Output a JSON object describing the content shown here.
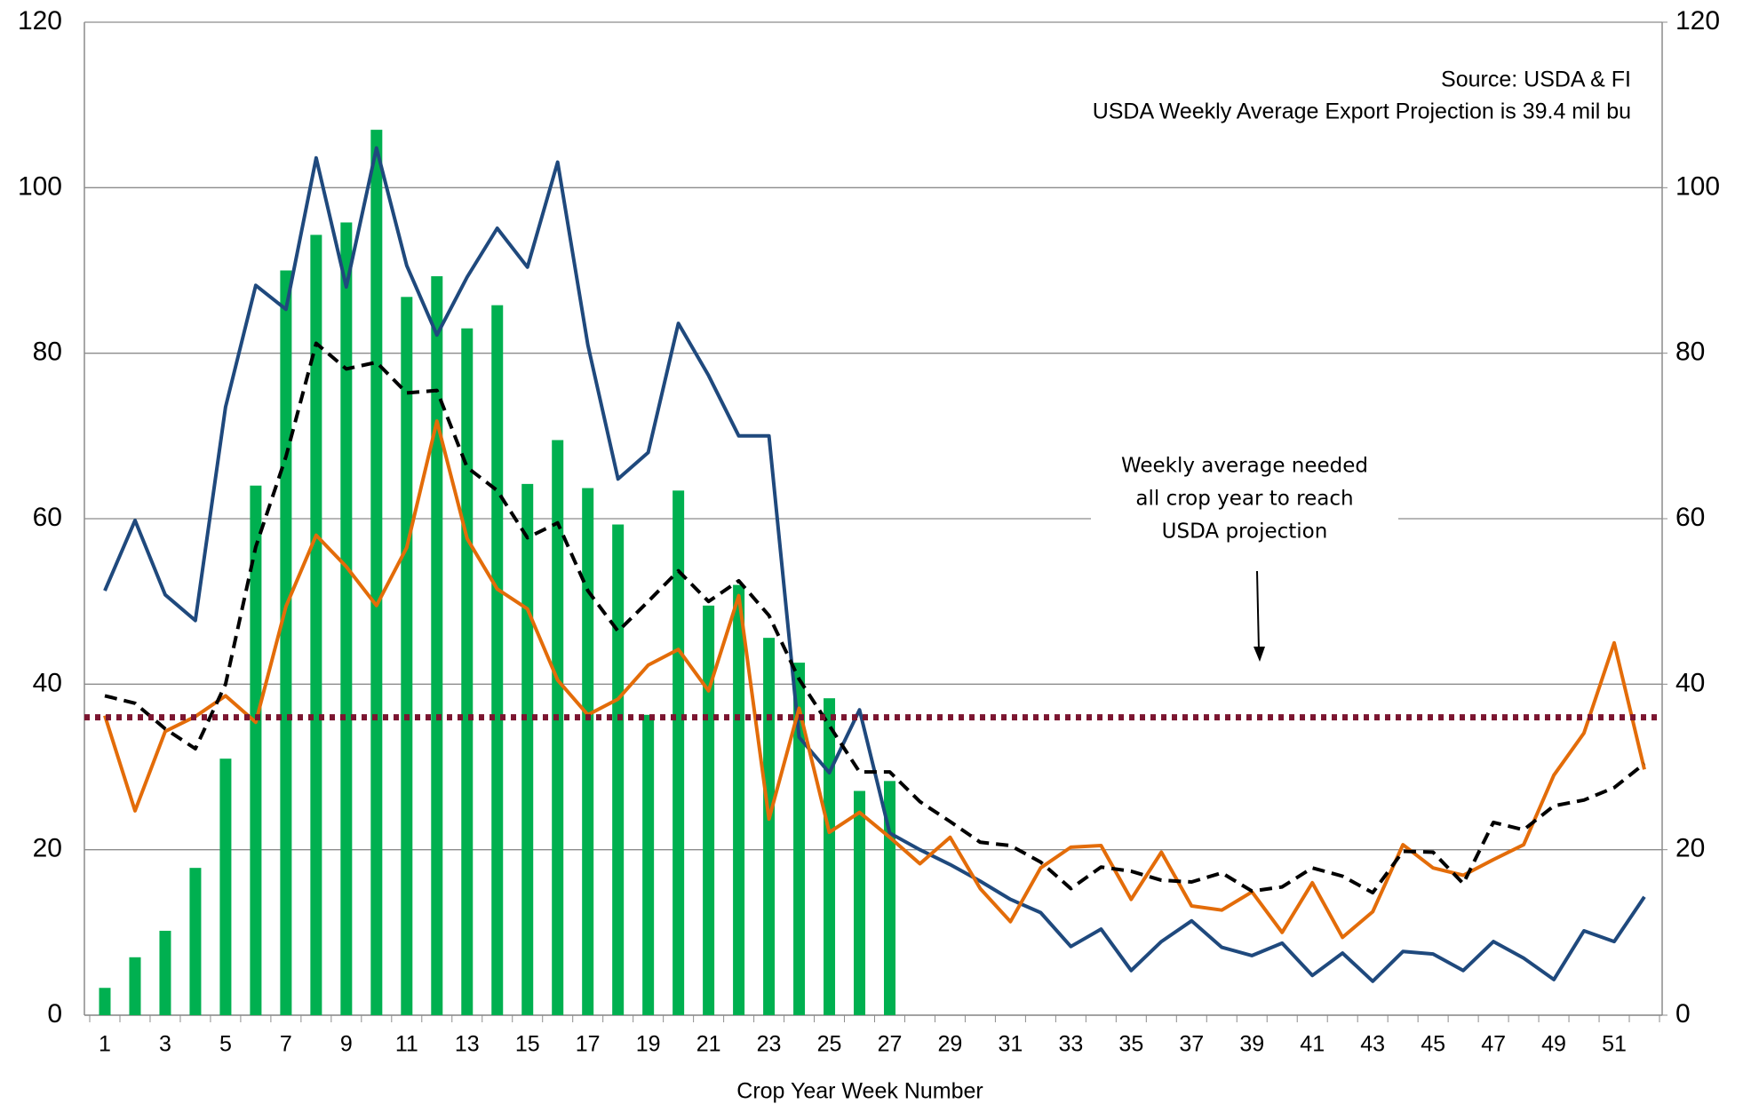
{
  "chart_data": {
    "type": "bar",
    "x_label": "Crop Year Week Number",
    "categories": [
      1,
      null,
      3,
      null,
      5,
      null,
      7,
      null,
      9,
      null,
      11,
      null,
      13,
      null,
      15,
      null,
      17,
      null,
      19,
      null,
      21,
      null,
      23,
      null,
      25,
      null,
      27,
      null,
      29,
      null,
      31,
      null,
      33,
      null,
      35,
      null,
      37,
      null,
      39,
      null,
      41,
      null,
      43,
      null,
      45,
      null,
      47,
      null,
      49,
      null,
      51,
      null
    ],
    "series": [
      {
        "type": "bar",
        "color": "#00b050",
        "values": [
          3.3,
          7,
          10.2,
          17.8,
          31,
          64,
          90,
          94.3,
          95.8,
          107,
          86.8,
          89.3,
          83,
          85.8,
          64.2,
          69.5,
          63.7,
          59.3,
          36.3,
          63.4,
          49.5,
          52,
          45.6,
          42.6,
          38.3,
          27.1,
          28.3,
          null,
          null,
          null,
          null,
          null,
          null,
          null,
          null,
          null,
          null,
          null,
          null,
          null,
          null,
          null,
          null,
          null,
          null,
          null,
          null,
          null,
          null,
          null,
          null,
          null
        ]
      },
      {
        "type": "line",
        "color": "#1f497d",
        "values": [
          51.3,
          59.8,
          50.8,
          47.7,
          73.5,
          88.2,
          85.3,
          103.6,
          88,
          104.8,
          90.6,
          82.2,
          89.2,
          95.1,
          90.4,
          103.1,
          81,
          64.8,
          68,
          83.6,
          77.3,
          70,
          70,
          33.6,
          29.3,
          36.9,
          22,
          20,
          18.2,
          16.2,
          14,
          12.4,
          8.3,
          10.4,
          5.4,
          8.9,
          11.4,
          8.2,
          7.2,
          8.7,
          4.8,
          7.5,
          4.1,
          7.7,
          7.4,
          5.4,
          8.9,
          6.9,
          4.3,
          10.2,
          8.9,
          14.3
        ]
      },
      {
        "type": "line",
        "color": "#e36c09",
        "values": [
          36.2,
          24.7,
          34.3,
          36.1,
          38.6,
          35.4,
          49.4,
          58,
          54.2,
          49.5,
          56.5,
          71.8,
          57.6,
          51.5,
          49.1,
          40.5,
          36.3,
          38.2,
          42.3,
          44.2,
          39.2,
          50.7,
          23.7,
          37.1,
          22.1,
          24.5,
          21.5,
          18.3,
          21.5,
          15.3,
          11.3,
          17.8,
          20.3,
          20.5,
          14,
          19.7,
          13.2,
          12.7,
          14.9,
          10,
          16,
          9.4,
          12.5,
          20.6,
          17.8,
          16.9,
          18.8,
          20.6,
          29,
          34.1,
          45,
          29.7
        ]
      },
      {
        "type": "line",
        "color": "#000000",
        "dashed": true,
        "values": [
          38.6,
          37.7,
          34.6,
          32.2,
          40,
          56.6,
          67.5,
          81.2,
          78.1,
          78.9,
          75.2,
          75.5,
          66.2,
          63.4,
          57.7,
          59.5,
          51.3,
          46.4,
          50,
          53.7,
          50,
          52.5,
          48.3,
          40.6,
          35,
          29.4,
          29.4,
          25.8,
          23.4,
          20.9,
          20.5,
          18.5,
          15.3,
          17.9,
          17.4,
          16.3,
          16.1,
          17.2,
          15,
          15.5,
          17.8,
          16.8,
          14.8,
          19.8,
          19.7,
          15.9,
          23.3,
          22.4,
          25.3,
          26,
          27.5,
          30.4
        ]
      }
    ],
    "reference_line": {
      "value": 36,
      "color": "#7b1530"
    },
    "ylim": [
      0,
      120
    ],
    "yticks": [
      0,
      20,
      40,
      60,
      80,
      100,
      120
    ],
    "y2lim": [
      0,
      120
    ],
    "y2ticks": [
      0,
      20,
      40,
      60,
      80,
      100,
      120
    ],
    "grid": true,
    "annotations": {
      "source": "Source: USDA & FI",
      "projection": "USDA Weekly Average Export Projection is 39.4 mil bu",
      "needed": [
        "Weekly average needed",
        "all crop year to reach",
        "USDA projection"
      ]
    }
  }
}
